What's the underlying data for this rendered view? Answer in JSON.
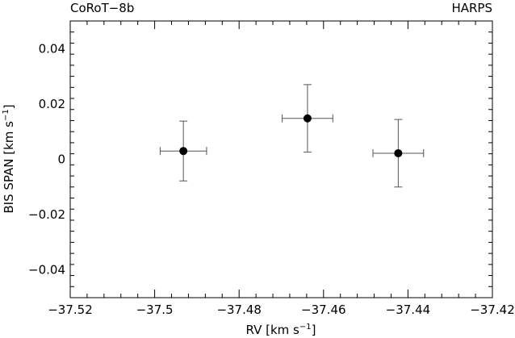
{
  "chart_data": {
    "type": "scatter",
    "corner_left": "CoRoT−8b",
    "corner_right": "HARPS",
    "xlabel_main": "RV [km s",
    "xlabel_sup": "−1",
    "xlabel_end": "]",
    "ylabel_main": "BIS SPAN [km s",
    "ylabel_sup": "−1",
    "ylabel_end": "]",
    "xlim": [
      -37.52,
      -37.42
    ],
    "ylim": [
      -0.05,
      0.05
    ],
    "xticks": [
      {
        "value": -37.52,
        "label": "−37.52"
      },
      {
        "value": -37.5,
        "label": "−37.5"
      },
      {
        "value": -37.48,
        "label": "−37.48"
      },
      {
        "value": -37.46,
        "label": "−37.46"
      },
      {
        "value": -37.44,
        "label": "−37.44"
      },
      {
        "value": -37.42,
        "label": "−37.42"
      }
    ],
    "yticks": [
      {
        "value": 0.04,
        "label": "0.04"
      },
      {
        "value": 0.02,
        "label": "0.02"
      },
      {
        "value": 0.0,
        "label": "0"
      },
      {
        "value": -0.02,
        "label": "−0.02"
      },
      {
        "value": -0.04,
        "label": "−0.04"
      }
    ],
    "x_minor_step": 0.004,
    "y_minor_step": 0.004,
    "points": [
      {
        "x": -37.4932,
        "y": 0.003,
        "xerr": 0.0055,
        "yerr": 0.0108
      },
      {
        "x": -37.4638,
        "y": 0.0148,
        "xerr": 0.006,
        "yerr": 0.0122
      },
      {
        "x": -37.4423,
        "y": 0.0022,
        "xerr": 0.006,
        "yerr": 0.0122
      }
    ],
    "grid": false,
    "marker_color": "#000000",
    "axis_color": "#000000"
  }
}
